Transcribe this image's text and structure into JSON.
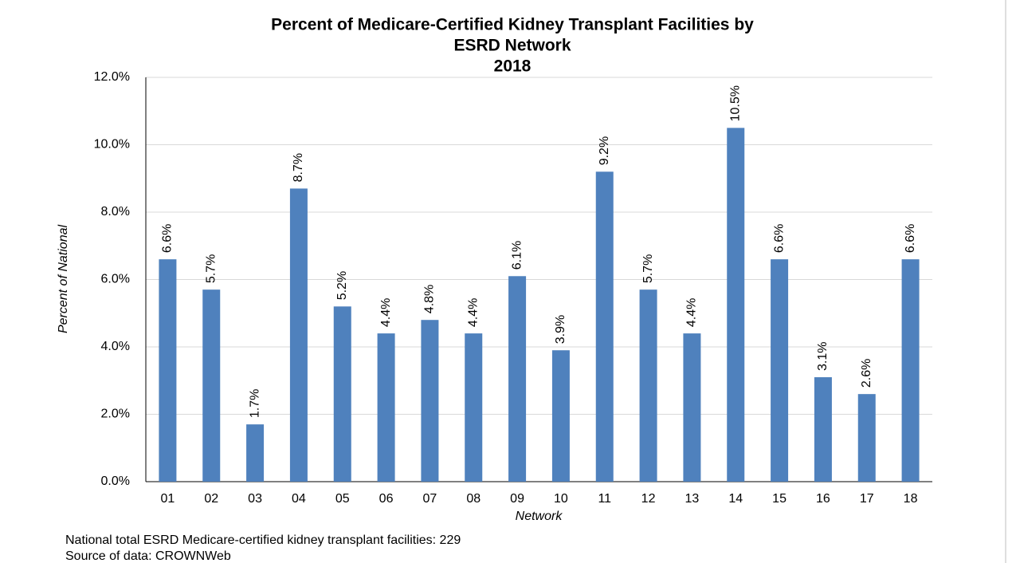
{
  "chart_data": {
    "type": "bar",
    "title": [
      "Percent of Medicare-Certified Kidney Transplant Facilities by",
      "ESRD Network",
      "2018"
    ],
    "x_label": "Network",
    "y_label": "Percent of National",
    "categories": [
      "01",
      "02",
      "03",
      "04",
      "05",
      "06",
      "07",
      "08",
      "09",
      "10",
      "11",
      "12",
      "13",
      "14",
      "15",
      "16",
      "17",
      "18"
    ],
    "values": [
      6.6,
      5.7,
      1.7,
      8.7,
      5.2,
      4.4,
      4.8,
      4.4,
      6.1,
      3.9,
      9.2,
      5.7,
      4.4,
      10.5,
      6.6,
      3.1,
      2.6,
      6.6
    ],
    "value_labels": [
      "6.6%",
      "5.7%",
      "1.7%",
      "8.7%",
      "5.2%",
      "4.4%",
      "4.8%",
      "4.4%",
      "6.1%",
      "3.9%",
      "9.2%",
      "5.7%",
      "4.4%",
      "10.5%",
      "6.6%",
      "3.1%",
      "2.6%",
      "6.6%"
    ],
    "color": "#4f81bd",
    "ylim": [
      0,
      12
    ],
    "yticks": [
      {
        "value": 0,
        "label": "0.0%"
      },
      {
        "value": 2,
        "label": "2.0%"
      },
      {
        "value": 4,
        "label": "4.0%"
      },
      {
        "value": 6,
        "label": "6.0%"
      },
      {
        "value": 8,
        "label": "8.0%"
      },
      {
        "value": 10,
        "label": "10.0%"
      },
      {
        "value": 12,
        "label": "12.0%"
      }
    ],
    "grid": true,
    "annotations": [
      "National total ESRD Medicare-certified kidney transplant facilities: 229",
      "Source of data:  CROWNWeb"
    ]
  }
}
